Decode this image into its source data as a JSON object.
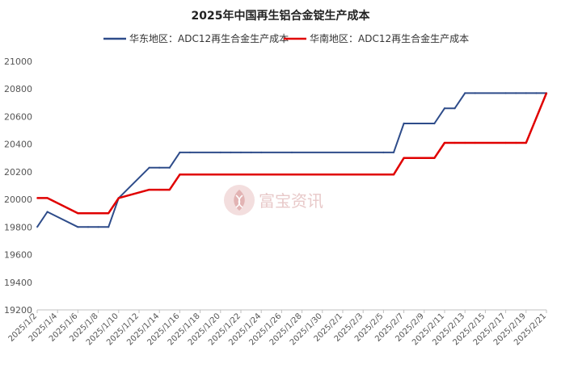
{
  "chart_data": {
    "type": "line",
    "title": "2025年中国再生铝合金锭生产成本",
    "xlabel": "",
    "ylabel": "",
    "ylim": [
      19200,
      21000
    ],
    "yticks": [
      19200,
      19400,
      19600,
      19800,
      20000,
      20200,
      20400,
      20600,
      20800,
      21000
    ],
    "grid": false,
    "legend_position": "top",
    "x_tick_labels": [
      "2025/1/2",
      "2025/1/4",
      "2025/1/6",
      "2025/1/8",
      "2025/1/10",
      "2025/1/12",
      "2025/1/14",
      "2025/1/16",
      "2025/1/18",
      "2025/1/20",
      "2025/1/22",
      "2025/1/24",
      "2025/1/26",
      "2025/1/28",
      "2025/1/30",
      "2025/2/1",
      "2025/2/3",
      "2025/2/5",
      "2025/2/7",
      "2025/2/9",
      "2025/2/11",
      "2025/2/13",
      "2025/2/15",
      "2025/2/17",
      "2025/2/19",
      "2025/2/21"
    ],
    "series": [
      {
        "name": "华东地区：ADC12再生合金生产成本",
        "color": "#2e4c8a",
        "points": [
          [
            "2025/1/2",
            19800
          ],
          [
            "2025/1/3",
            19910
          ],
          [
            "2025/1/6",
            19800
          ],
          [
            "2025/1/7",
            19800
          ],
          [
            "2025/1/8",
            19800
          ],
          [
            "2025/1/9",
            19800
          ],
          [
            "2025/1/10",
            20010
          ],
          [
            "2025/1/13",
            20230
          ],
          [
            "2025/1/14",
            20230
          ],
          [
            "2025/1/15",
            20230
          ],
          [
            "2025/1/16",
            20340
          ],
          [
            "2025/1/17",
            20340
          ],
          [
            "2025/1/20",
            20340
          ],
          [
            "2025/1/21",
            20340
          ],
          [
            "2025/1/22",
            20340
          ],
          [
            "2025/1/23",
            20340
          ],
          [
            "2025/1/24",
            20340
          ],
          [
            "2025/1/27",
            20340
          ],
          [
            "2025/2/5",
            20340
          ],
          [
            "2025/2/6",
            20340
          ],
          [
            "2025/2/7",
            20550
          ],
          [
            "2025/2/10",
            20550
          ],
          [
            "2025/2/11",
            20660
          ],
          [
            "2025/2/12",
            20660
          ],
          [
            "2025/2/13",
            20770
          ],
          [
            "2025/2/14",
            20770
          ],
          [
            "2025/2/17",
            20770
          ],
          [
            "2025/2/18",
            20770
          ],
          [
            "2025/2/19",
            20770
          ],
          [
            "2025/2/20",
            20770
          ],
          [
            "2025/2/21",
            20770
          ]
        ]
      },
      {
        "name": "华南地区：ADC12再生合金生产成本",
        "color": "#e00000",
        "points": [
          [
            "2025/1/2",
            20010
          ],
          [
            "2025/1/3",
            20010
          ],
          [
            "2025/1/6",
            19900
          ],
          [
            "2025/1/7",
            19900
          ],
          [
            "2025/1/8",
            19900
          ],
          [
            "2025/1/9",
            19900
          ],
          [
            "2025/1/10",
            20010
          ],
          [
            "2025/1/13",
            20070
          ],
          [
            "2025/1/14",
            20070
          ],
          [
            "2025/1/15",
            20070
          ],
          [
            "2025/1/16",
            20180
          ],
          [
            "2025/1/17",
            20180
          ],
          [
            "2025/1/20",
            20180
          ],
          [
            "2025/1/21",
            20180
          ],
          [
            "2025/1/22",
            20180
          ],
          [
            "2025/1/23",
            20180
          ],
          [
            "2025/1/24",
            20180
          ],
          [
            "2025/1/27",
            20180
          ],
          [
            "2025/2/5",
            20180
          ],
          [
            "2025/2/6",
            20180
          ],
          [
            "2025/2/7",
            20300
          ],
          [
            "2025/2/10",
            20300
          ],
          [
            "2025/2/11",
            20410
          ],
          [
            "2025/2/12",
            20410
          ],
          [
            "2025/2/13",
            20410
          ],
          [
            "2025/2/14",
            20410
          ],
          [
            "2025/2/17",
            20410
          ],
          [
            "2025/2/18",
            20410
          ],
          [
            "2025/2/19",
            20410
          ],
          [
            "2025/2/20",
            20590
          ],
          [
            "2025/2/21",
            20770
          ]
        ]
      }
    ]
  },
  "watermark": {
    "text": "富宝资讯",
    "icon": "flame-logo-icon"
  }
}
